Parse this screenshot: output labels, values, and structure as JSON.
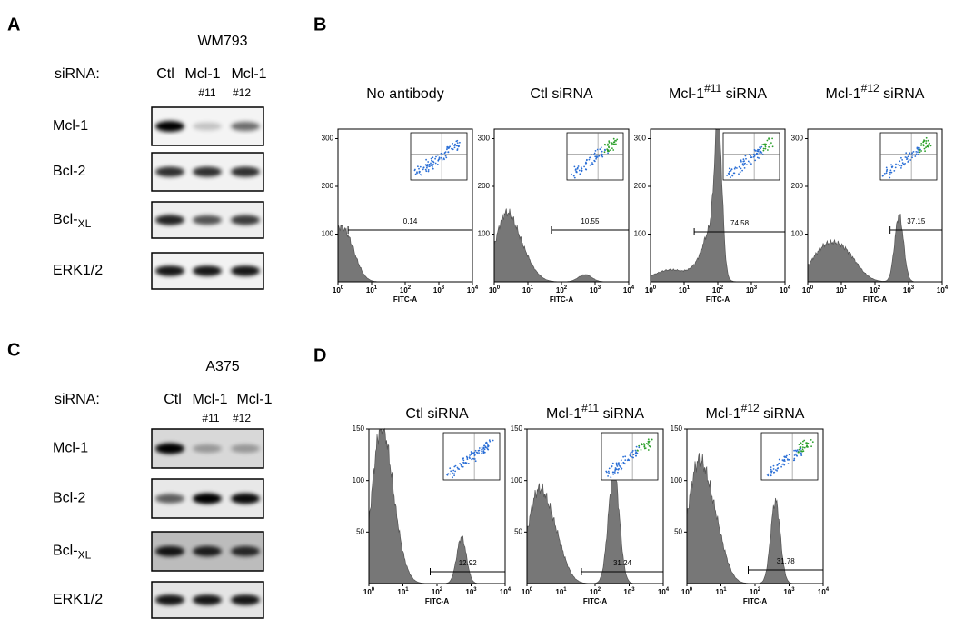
{
  "blots": [
    {
      "letter": "A",
      "cell_line": "WM793",
      "sirna_label": "siRNA:",
      "lanes": [
        "Ctl",
        "Mcl-1",
        "Mcl-1"
      ],
      "lane_subs": [
        "#11",
        "#12"
      ],
      "proteins": [
        {
          "name": "Mcl-1"
        },
        {
          "name": "Bcl-2"
        },
        {
          "name": "Bcl-",
          "sub": "XL"
        },
        {
          "name": "ERK1/2"
        }
      ]
    },
    {
      "letter": "C",
      "cell_line": "A375",
      "sirna_label": "siRNA:",
      "lanes": [
        "Ctl",
        "Mcl-1",
        "Mcl-1"
      ],
      "lane_subs": [
        "#11",
        "#12"
      ],
      "proteins": [
        {
          "name": "Mcl-1"
        },
        {
          "name": "Bcl-2"
        },
        {
          "name": "Bcl-",
          "sub": "XL"
        },
        {
          "name": "ERK1/2"
        }
      ]
    }
  ],
  "flow": [
    {
      "letter": "B",
      "ylim": [
        0,
        320
      ],
      "yticks": [
        100,
        200,
        300
      ],
      "xtick_base": "10",
      "xtick_exponents": [
        0,
        1,
        2,
        3,
        4
      ],
      "x_label": "FITC-A",
      "plots": [
        {
          "title": "No antibody",
          "gate": "0.14"
        },
        {
          "title": "Ctl siRNA",
          "gate": "10.55"
        },
        {
          "title": "Mcl-1",
          "title_sup": "#11",
          "title_end": " siRNA",
          "gate": "74.58"
        },
        {
          "title": "Mcl-1",
          "title_sup": "#12",
          "title_end": " siRNA",
          "gate": "37.15"
        }
      ]
    },
    {
      "letter": "D",
      "ylim": [
        0,
        150
      ],
      "yticks": [
        50,
        100,
        150
      ],
      "xtick_base": "10",
      "xtick_exponents": [
        0,
        1,
        2,
        3,
        4
      ],
      "x_label": "FITC-A",
      "plots": [
        {
          "title": "Ctl siRNA",
          "gate": "12.92"
        },
        {
          "title": "Mcl-1",
          "title_sup": "#11",
          "title_end": " siRNA",
          "gate": "31.24"
        },
        {
          "title": "Mcl-1",
          "title_sup": "#12",
          "title_end": " siRNA",
          "gate": "31.78"
        }
      ]
    }
  ]
}
